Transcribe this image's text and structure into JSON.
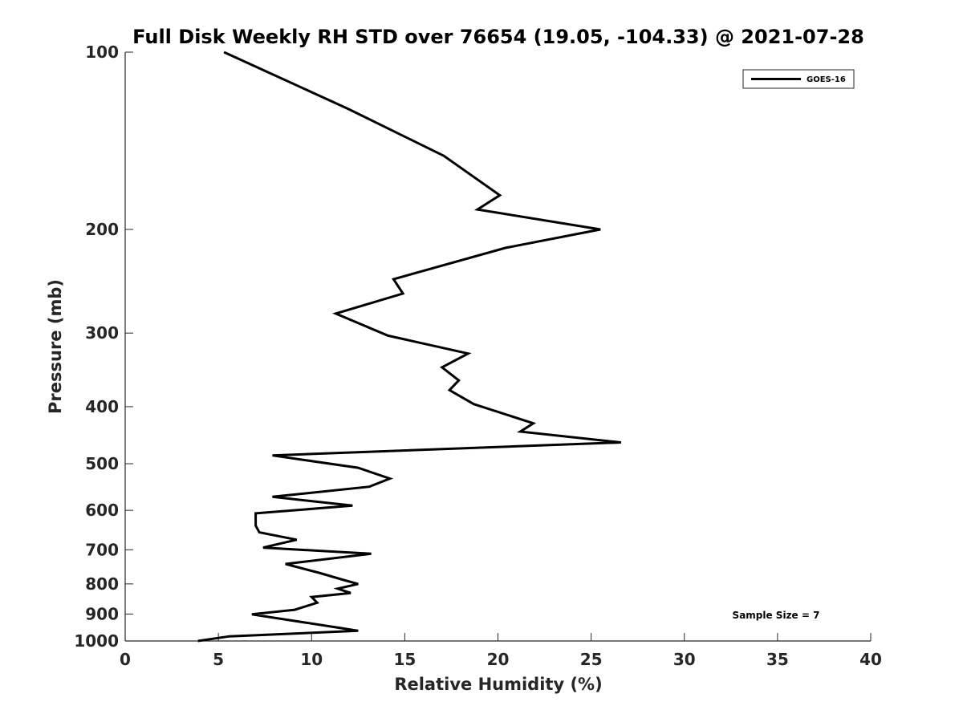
{
  "chart_data": {
    "type": "line",
    "title": "Full Disk Weekly RH STD over 76654 (19.05, -104.33) @ 2021-07-28",
    "xlabel": "Relative Humidity (%)",
    "ylabel": "Pressure (mb)",
    "xlim": [
      0,
      40
    ],
    "ylim": [
      100,
      1000
    ],
    "y_scale": "log",
    "y_reversed": true,
    "x_ticks": [
      0,
      5,
      10,
      15,
      20,
      25,
      30,
      35,
      40
    ],
    "y_ticks": [
      100,
      200,
      300,
      400,
      500,
      600,
      700,
      800,
      900,
      1000
    ],
    "grid": false,
    "legend_position": "top-right",
    "annotation": "Sample Size = 7",
    "series": [
      {
        "name": "GOES-16",
        "color": "#000000",
        "points": [
          [
            5.3,
            100
          ],
          [
            12.0,
            125
          ],
          [
            17.1,
            150
          ],
          [
            20.1,
            175
          ],
          [
            18.9,
            185
          ],
          [
            25.5,
            200
          ],
          [
            20.4,
            215
          ],
          [
            14.4,
            243
          ],
          [
            14.9,
            257
          ],
          [
            11.3,
            278
          ],
          [
            14.1,
            303
          ],
          [
            18.4,
            325
          ],
          [
            17.0,
            343
          ],
          [
            17.9,
            361
          ],
          [
            17.4,
            375
          ],
          [
            18.7,
            396
          ],
          [
            21.9,
            427
          ],
          [
            21.2,
            441
          ],
          [
            26.6,
            460
          ],
          [
            7.9,
            484
          ],
          [
            12.5,
            508
          ],
          [
            14.2,
            530
          ],
          [
            13.1,
            547
          ],
          [
            7.9,
            569
          ],
          [
            12.2,
            589
          ],
          [
            7.0,
            607
          ],
          [
            7.0,
            637
          ],
          [
            7.2,
            654
          ],
          [
            9.2,
            673
          ],
          [
            7.4,
            694
          ],
          [
            13.2,
            711
          ],
          [
            8.6,
            740
          ],
          [
            10.4,
            766
          ],
          [
            11.8,
            789
          ],
          [
            12.5,
            800
          ],
          [
            11.4,
            815
          ],
          [
            12.1,
            829
          ],
          [
            10.0,
            842
          ],
          [
            10.3,
            861
          ],
          [
            9.1,
            885
          ],
          [
            6.8,
            901
          ],
          [
            11.6,
            951
          ],
          [
            12.5,
            961
          ],
          [
            5.6,
            982
          ],
          [
            3.9,
            1000
          ]
        ]
      }
    ]
  }
}
